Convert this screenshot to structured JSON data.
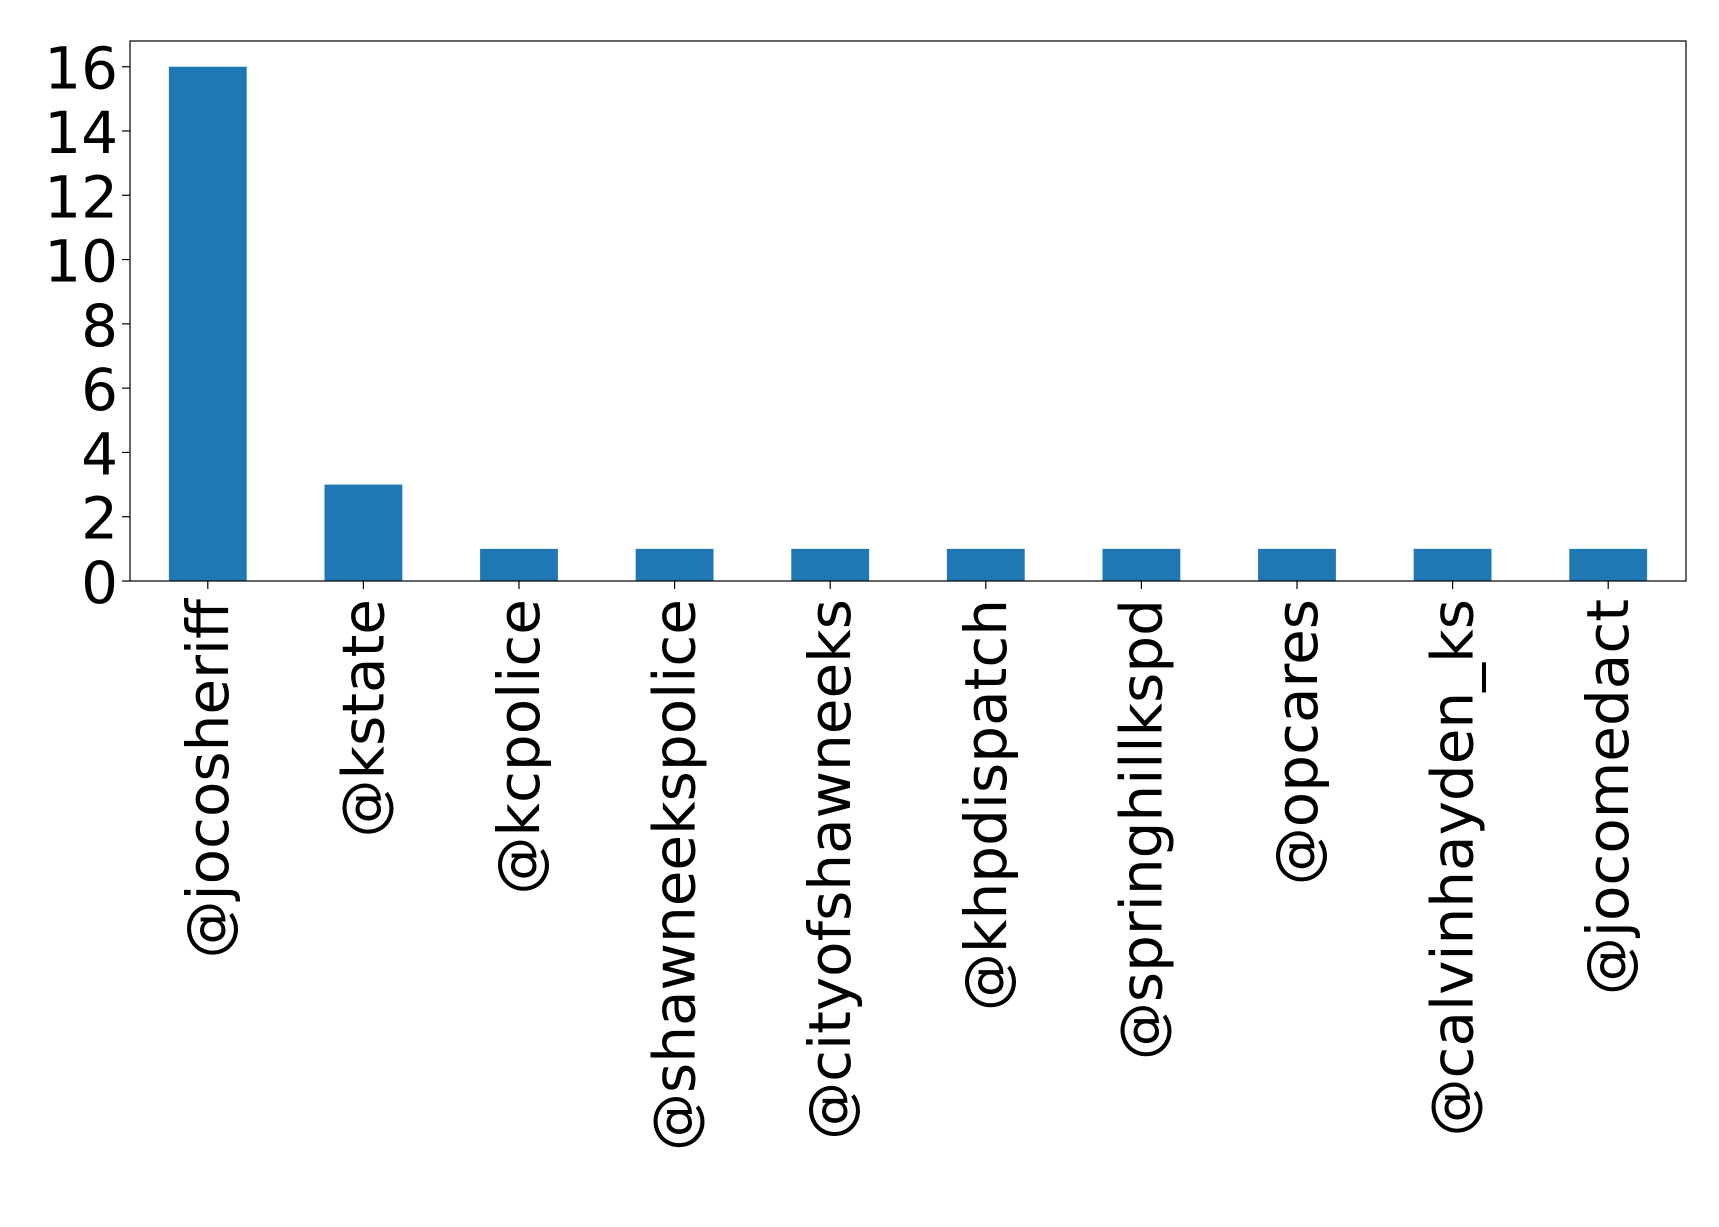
{
  "chart_data": {
    "type": "bar",
    "categories": [
      "@jocosheriff",
      "@kstate",
      "@kcpolice",
      "@shawneekspolice",
      "@cityofshawneeks",
      "@khpdispatch",
      "@springhillkspd",
      "@opcares",
      "@calvinhayden_ks",
      "@jocomedact"
    ],
    "values": [
      16,
      3,
      1,
      1,
      1,
      1,
      1,
      1,
      1,
      1
    ],
    "yticks": [
      "0",
      "2",
      "4",
      "6",
      "8",
      "10",
      "12",
      "14",
      "16"
    ],
    "ylim": [
      0,
      16.8
    ],
    "title": "",
    "xlabel": "",
    "ylabel": "",
    "grid": false,
    "legend": "none",
    "bar_color": "#1f77b4",
    "axis_color": "#000000"
  }
}
